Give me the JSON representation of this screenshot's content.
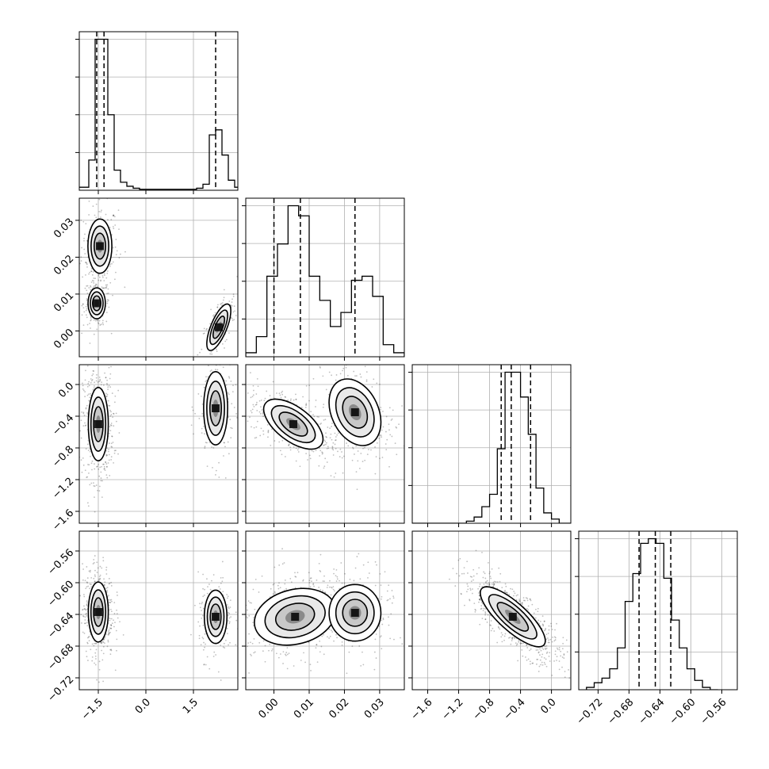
{
  "chart_data": [
    {
      "type": "histogram",
      "variable": "p0",
      "bins_x": [
        -2.2,
        -2.0,
        -1.8,
        -1.6,
        -1.4,
        -1.2,
        -1.0,
        -0.8,
        -0.6,
        -0.4,
        -0.2,
        0.0,
        0.2,
        0.4,
        0.6,
        0.8,
        1.0,
        1.2,
        1.4,
        1.6,
        1.8,
        2.0,
        2.2,
        2.4,
        2.6,
        2.8
      ],
      "counts": [
        3,
        3,
        30,
        150,
        150,
        75,
        20,
        8,
        4,
        2,
        1,
        1,
        1,
        1,
        1,
        1,
        1,
        1,
        1,
        2,
        6,
        55,
        60,
        35,
        10,
        3
      ],
      "quantiles": [
        -1.55,
        -1.32,
        2.2
      ],
      "xlim": [
        -2.1,
        2.9
      ],
      "grid": true
    },
    {
      "type": "histogram",
      "variable": "p1",
      "bins_x": [
        -0.008,
        -0.005,
        -0.002,
        0.001,
        0.004,
        0.007,
        0.01,
        0.013,
        0.016,
        0.019,
        0.022,
        0.025,
        0.028,
        0.031,
        0.034
      ],
      "counts": [
        2,
        10,
        40,
        56,
        75,
        70,
        40,
        28,
        15,
        22,
        38,
        40,
        30,
        6,
        2
      ],
      "quantiles": [
        0.0,
        0.0075,
        0.023
      ],
      "xlim": [
        -0.008,
        0.037
      ],
      "grid": true
    },
    {
      "type": "histogram",
      "variable": "p2",
      "bins_x": [
        -1.8,
        -1.7,
        -1.6,
        -1.5,
        -1.4,
        -1.3,
        -1.2,
        -1.1,
        -1.0,
        -0.9,
        -0.8,
        -0.7,
        -0.6,
        -0.5,
        -0.4,
        -0.3,
        -0.2,
        -0.1,
        0.0,
        0.1,
        0.2
      ],
      "counts": [
        0,
        0,
        0,
        0,
        0,
        0,
        0,
        1,
        3,
        8,
        14,
        36,
        73,
        73,
        61,
        43,
        17,
        5,
        2,
        0,
        0
      ],
      "quantiles": [
        -0.65,
        -0.52,
        -0.27
      ],
      "xlim": [
        -1.8,
        0.25
      ],
      "grid": true
    },
    {
      "type": "histogram",
      "variable": "p3",
      "bins_x": [
        -0.735,
        -0.725,
        -0.715,
        -0.705,
        -0.695,
        -0.685,
        -0.675,
        -0.665,
        -0.655,
        -0.645,
        -0.635,
        -0.625,
        -0.615,
        -0.605,
        -0.595,
        -0.585,
        -0.575
      ],
      "counts": [
        1,
        3,
        5,
        9,
        18,
        38,
        50,
        63,
        65,
        63,
        48,
        30,
        18,
        9,
        4,
        1,
        0
      ],
      "quantiles": [
        -0.667,
        -0.646,
        -0.626
      ],
      "xlim": [
        -0.745,
        -0.54
      ],
      "grid": true
    },
    {
      "type": "contour",
      "x_variable": "p0",
      "y_variable": "p1",
      "modes": [
        {
          "x": -1.45,
          "y": 0.023,
          "sx": 0.18,
          "sy": 0.0035,
          "rho": 0.0,
          "weight": 0.35
        },
        {
          "x": -1.55,
          "y": 0.0075,
          "sx": 0.13,
          "sy": 0.002,
          "rho": 0.0,
          "weight": 0.35
        },
        {
          "x": 2.3,
          "y": 0.001,
          "sx": 0.18,
          "sy": 0.003,
          "rho": 0.7,
          "weight": 0.3
        }
      ],
      "xlim": [
        -2.1,
        2.9
      ],
      "ylim": [
        -0.007,
        0.036
      ]
    },
    {
      "type": "contour",
      "x_variable": "p0",
      "y_variable": "p2",
      "modes": [
        {
          "x": -1.5,
          "y": -0.5,
          "sx": 0.15,
          "sy": 0.22,
          "rho": 0.0,
          "weight": 0.7
        },
        {
          "x": 2.2,
          "y": -0.3,
          "sx": 0.18,
          "sy": 0.22,
          "rho": 0.0,
          "weight": 0.3
        }
      ],
      "xlim": [
        -2.1,
        2.9
      ],
      "ylim": [
        -1.75,
        0.25
      ]
    },
    {
      "type": "contour",
      "x_variable": "p1",
      "y_variable": "p2",
      "modes": [
        {
          "x": 0.0055,
          "y": -0.5,
          "sx": 0.004,
          "sy": 0.15,
          "rho": -0.6,
          "weight": 0.65
        },
        {
          "x": 0.023,
          "y": -0.35,
          "sx": 0.0035,
          "sy": 0.2,
          "rho": -0.3,
          "weight": 0.35
        }
      ],
      "xlim": [
        -0.008,
        0.037
      ],
      "ylim": [
        -1.75,
        0.25
      ]
    },
    {
      "type": "contour",
      "x_variable": "p0",
      "y_variable": "p3",
      "modes": [
        {
          "x": -1.5,
          "y": -0.637,
          "sx": 0.15,
          "sy": 0.018,
          "rho": 0.0,
          "weight": 0.7
        },
        {
          "x": 2.2,
          "y": -0.643,
          "sx": 0.17,
          "sy": 0.016,
          "rho": 0.0,
          "weight": 0.3
        }
      ],
      "xlim": [
        -2.1,
        2.9
      ],
      "ylim": [
        -0.735,
        -0.535
      ]
    },
    {
      "type": "contour",
      "x_variable": "p1",
      "y_variable": "p3",
      "modes": [
        {
          "x": 0.006,
          "y": -0.643,
          "sx": 0.0055,
          "sy": 0.017,
          "rho": 0.2,
          "weight": 0.65
        },
        {
          "x": 0.023,
          "y": -0.638,
          "sx": 0.0035,
          "sy": 0.017,
          "rho": 0.0,
          "weight": 0.35
        }
      ],
      "xlim": [
        -0.008,
        0.037
      ],
      "ylim": [
        -0.735,
        -0.535
      ]
    },
    {
      "type": "contour",
      "x_variable": "p2",
      "y_variable": "p3",
      "modes": [
        {
          "x": -0.5,
          "y": -0.643,
          "sx": 0.2,
          "sy": 0.018,
          "rho": -0.8,
          "weight": 1.0
        }
      ],
      "xlim": [
        -1.8,
        0.25
      ],
      "ylim": [
        -0.735,
        -0.535
      ]
    }
  ],
  "axes": {
    "p0": {
      "ticks": [
        -1.5,
        0.0,
        1.5
      ],
      "tick_labels": [
        "−1.5",
        "0.0",
        "1.5"
      ]
    },
    "p1": {
      "ticks": [
        0.0,
        0.01,
        0.02,
        0.03
      ],
      "tick_labels": [
        "0.00",
        "0.01",
        "0.02",
        "0.03"
      ]
    },
    "p2": {
      "ticks": [
        -1.6,
        -1.2,
        -0.8,
        -0.4,
        0.0
      ],
      "tick_labels": [
        "−1.6",
        "−1.2",
        "−0.8",
        "−0.4",
        "0.0"
      ]
    },
    "p3": {
      "ticks": [
        -0.72,
        -0.68,
        -0.64,
        -0.6,
        -0.56
      ],
      "tick_labels": [
        "−0.72",
        "−0.68",
        "−0.64",
        "−0.60",
        "−0.56"
      ]
    }
  },
  "colors": {
    "line": "#000000",
    "grid": "#b0b0b0",
    "points": "#000000"
  }
}
